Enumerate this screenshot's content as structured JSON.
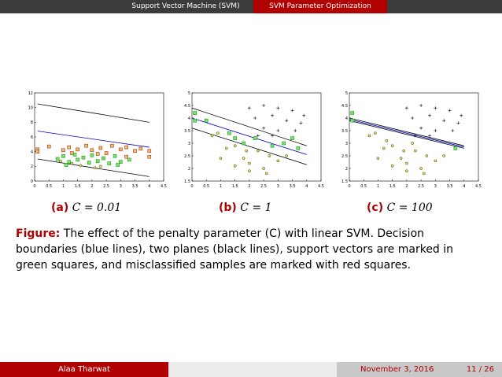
{
  "header": {
    "active_section": "Support Vector Machine (SVM)",
    "next_section": "SVM Parameter Optimization"
  },
  "subfigures": [
    {
      "label": "(a)",
      "math": "C = 0.01"
    },
    {
      "label": "(b)",
      "math": "C = 1"
    },
    {
      "label": "(c)",
      "math": "C = 100"
    }
  ],
  "caption": {
    "label": "Figure:",
    "text": " The effect of the penalty parameter (C) with linear SVM. Decision boundaries (blue lines), two planes (black lines), support vectors are marked in green squares, and misclassified samples are marked with red squares."
  },
  "footer": {
    "author": "Alaa Tharwat",
    "date": "November 3, 2016",
    "page": "11 / 26"
  },
  "chart_data": [
    {
      "type": "scatter",
      "xlim": [
        0,
        4.5
      ],
      "ylim": [
        0,
        12
      ],
      "xticks": [
        "0",
        "0.5",
        "1",
        "1.5",
        "2",
        "2.5",
        "3",
        "3.5",
        "4",
        "4.5"
      ],
      "yticks": [
        "0",
        "2",
        "4",
        "6",
        "8",
        "10",
        "12"
      ],
      "lines": [
        {
          "kind": "plane",
          "x": [
            0.1,
            4.0
          ],
          "y": [
            10.5,
            8.0
          ]
        },
        {
          "kind": "boundary",
          "x": [
            0.1,
            4.0
          ],
          "y": [
            6.8,
            4.6
          ]
        },
        {
          "kind": "plane",
          "x": [
            0.1,
            4.0
          ],
          "y": [
            3.0,
            0.6
          ]
        }
      ],
      "points": [
        {
          "x": 0.1,
          "y": 4.3,
          "m": "sq",
          "c": "red"
        },
        {
          "x": 0.1,
          "y": 4.0,
          "m": "sq",
          "c": "red"
        },
        {
          "x": 0.5,
          "y": 4.7,
          "m": "sq",
          "c": "red"
        },
        {
          "x": 1.0,
          "y": 4.2,
          "m": "sq",
          "c": "red"
        },
        {
          "x": 1.2,
          "y": 4.6,
          "m": "sq",
          "c": "red"
        },
        {
          "x": 1.5,
          "y": 4.3,
          "m": "sq",
          "c": "red"
        },
        {
          "x": 1.8,
          "y": 4.8,
          "m": "sq",
          "c": "red"
        },
        {
          "x": 2.0,
          "y": 4.2,
          "m": "sq",
          "c": "red"
        },
        {
          "x": 2.3,
          "y": 4.5,
          "m": "sq",
          "c": "red"
        },
        {
          "x": 2.5,
          "y": 3.8,
          "m": "sq",
          "c": "red"
        },
        {
          "x": 2.7,
          "y": 4.8,
          "m": "sq",
          "c": "red"
        },
        {
          "x": 3.0,
          "y": 4.3,
          "m": "sq",
          "c": "red"
        },
        {
          "x": 3.2,
          "y": 4.6,
          "m": "sq",
          "c": "red"
        },
        {
          "x": 3.5,
          "y": 4.1,
          "m": "sq",
          "c": "red"
        },
        {
          "x": 3.7,
          "y": 4.4,
          "m": "sq",
          "c": "red"
        },
        {
          "x": 4.0,
          "y": 4.1,
          "m": "sq",
          "c": "red"
        },
        {
          "x": 4.0,
          "y": 3.3,
          "m": "sq",
          "c": "red"
        },
        {
          "x": 3.2,
          "y": 3.3,
          "m": "sq",
          "c": "red"
        },
        {
          "x": 2.2,
          "y": 3.7,
          "m": "sq",
          "c": "red"
        },
        {
          "x": 1.3,
          "y": 3.8,
          "m": "sq",
          "c": "red"
        },
        {
          "x": 0.8,
          "y": 3.0,
          "m": "sq",
          "c": "green"
        },
        {
          "x": 1.0,
          "y": 3.4,
          "m": "sq",
          "c": "green"
        },
        {
          "x": 1.2,
          "y": 2.6,
          "m": "sq",
          "c": "green"
        },
        {
          "x": 1.4,
          "y": 3.6,
          "m": "sq",
          "c": "green"
        },
        {
          "x": 1.5,
          "y": 2.9,
          "m": "sq",
          "c": "green"
        },
        {
          "x": 1.7,
          "y": 3.2,
          "m": "sq",
          "c": "green"
        },
        {
          "x": 1.9,
          "y": 2.5,
          "m": "sq",
          "c": "green"
        },
        {
          "x": 2.0,
          "y": 3.5,
          "m": "sq",
          "c": "green"
        },
        {
          "x": 2.2,
          "y": 2.7,
          "m": "sq",
          "c": "green"
        },
        {
          "x": 2.4,
          "y": 3.1,
          "m": "sq",
          "c": "green"
        },
        {
          "x": 2.6,
          "y": 2.4,
          "m": "sq",
          "c": "green"
        },
        {
          "x": 2.8,
          "y": 3.4,
          "m": "sq",
          "c": "green"
        },
        {
          "x": 3.0,
          "y": 2.6,
          "m": "sq",
          "c": "green"
        },
        {
          "x": 3.3,
          "y": 2.9,
          "m": "sq",
          "c": "green"
        },
        {
          "x": 1.1,
          "y": 2.2,
          "m": "sq",
          "c": "green"
        },
        {
          "x": 2.9,
          "y": 2.2,
          "m": "sq",
          "c": "green"
        },
        {
          "x": 0.9,
          "y": 2.7,
          "m": "o",
          "c": "yellow"
        },
        {
          "x": 1.6,
          "y": 2.1,
          "m": "o",
          "c": "yellow"
        },
        {
          "x": 2.3,
          "y": 2.0,
          "m": "o",
          "c": "yellow"
        },
        {
          "x": 2.1,
          "y": 1.8,
          "m": "o",
          "c": "yellow"
        },
        {
          "x": 1.3,
          "y": 2.4,
          "m": "o",
          "c": "yellow"
        }
      ]
    },
    {
      "type": "scatter",
      "xlim": [
        0,
        4.5
      ],
      "ylim": [
        1.5,
        5
      ],
      "xticks": [
        "0",
        "0.5",
        "1",
        "1.5",
        "2",
        "2.5",
        "3",
        "3.5",
        "4",
        "4.5"
      ],
      "yticks": [
        "1.5",
        "2",
        "2.5",
        "3",
        "3.5",
        "4",
        "4.5",
        "5"
      ],
      "lines": [
        {
          "kind": "plane",
          "x": [
            0.0,
            4.0
          ],
          "y": [
            4.4,
            2.9
          ]
        },
        {
          "kind": "boundary",
          "x": [
            0.0,
            4.0
          ],
          "y": [
            4.0,
            2.55
          ]
        },
        {
          "kind": "plane",
          "x": [
            0.0,
            4.0
          ],
          "y": [
            3.6,
            2.15
          ]
        }
      ],
      "points": [
        {
          "x": 2.0,
          "y": 4.4,
          "m": "+",
          "c": "black"
        },
        {
          "x": 2.5,
          "y": 4.5,
          "m": "+",
          "c": "black"
        },
        {
          "x": 3.0,
          "y": 4.4,
          "m": "+",
          "c": "black"
        },
        {
          "x": 3.5,
          "y": 4.3,
          "m": "+",
          "c": "black"
        },
        {
          "x": 2.2,
          "y": 4.0,
          "m": "+",
          "c": "black"
        },
        {
          "x": 2.8,
          "y": 4.1,
          "m": "+",
          "c": "black"
        },
        {
          "x": 3.3,
          "y": 3.9,
          "m": "+",
          "c": "black"
        },
        {
          "x": 3.8,
          "y": 3.8,
          "m": "+",
          "c": "black"
        },
        {
          "x": 2.5,
          "y": 3.6,
          "m": "+",
          "c": "black"
        },
        {
          "x": 3.0,
          "y": 3.5,
          "m": "+",
          "c": "black"
        },
        {
          "x": 3.6,
          "y": 3.5,
          "m": "+",
          "c": "black"
        },
        {
          "x": 2.8,
          "y": 3.3,
          "m": "+",
          "c": "black"
        },
        {
          "x": 3.9,
          "y": 4.1,
          "m": "+",
          "c": "black"
        },
        {
          "x": 2.3,
          "y": 3.3,
          "m": "+",
          "c": "black"
        },
        {
          "x": 0.1,
          "y": 4.2,
          "m": "sq",
          "c": "green"
        },
        {
          "x": 0.1,
          "y": 3.9,
          "m": "sq",
          "c": "green"
        },
        {
          "x": 0.5,
          "y": 3.9,
          "m": "sq",
          "c": "green"
        },
        {
          "x": 1.3,
          "y": 3.4,
          "m": "sq",
          "c": "green"
        },
        {
          "x": 2.2,
          "y": 3.2,
          "m": "sq",
          "c": "green"
        },
        {
          "x": 2.8,
          "y": 2.9,
          "m": "sq",
          "c": "green"
        },
        {
          "x": 3.2,
          "y": 3.0,
          "m": "sq",
          "c": "green"
        },
        {
          "x": 3.5,
          "y": 3.2,
          "m": "sq",
          "c": "green"
        },
        {
          "x": 3.7,
          "y": 2.8,
          "m": "sq",
          "c": "green"
        },
        {
          "x": 1.8,
          "y": 3.0,
          "m": "sq",
          "c": "green"
        },
        {
          "x": 1.5,
          "y": 3.2,
          "m": "sq",
          "c": "green"
        },
        {
          "x": 0.7,
          "y": 3.3,
          "m": "o",
          "c": "yellow"
        },
        {
          "x": 0.9,
          "y": 3.4,
          "m": "o",
          "c": "yellow"
        },
        {
          "x": 1.2,
          "y": 2.8,
          "m": "o",
          "c": "yellow"
        },
        {
          "x": 1.5,
          "y": 2.9,
          "m": "o",
          "c": "yellow"
        },
        {
          "x": 1.8,
          "y": 2.4,
          "m": "o",
          "c": "yellow"
        },
        {
          "x": 2.0,
          "y": 2.2,
          "m": "o",
          "c": "yellow"
        },
        {
          "x": 2.3,
          "y": 2.7,
          "m": "o",
          "c": "yellow"
        },
        {
          "x": 2.5,
          "y": 2.0,
          "m": "o",
          "c": "yellow"
        },
        {
          "x": 1.5,
          "y": 2.1,
          "m": "o",
          "c": "yellow"
        },
        {
          "x": 1.0,
          "y": 2.4,
          "m": "o",
          "c": "yellow"
        },
        {
          "x": 1.9,
          "y": 2.7,
          "m": "o",
          "c": "yellow"
        },
        {
          "x": 3.0,
          "y": 2.3,
          "m": "o",
          "c": "yellow"
        },
        {
          "x": 2.7,
          "y": 2.5,
          "m": "o",
          "c": "yellow"
        },
        {
          "x": 2.0,
          "y": 1.9,
          "m": "o",
          "c": "yellow"
        },
        {
          "x": 3.3,
          "y": 2.5,
          "m": "o",
          "c": "yellow"
        },
        {
          "x": 2.6,
          "y": 1.8,
          "m": "o",
          "c": "yellow"
        }
      ]
    },
    {
      "type": "scatter",
      "xlim": [
        0,
        4.5
      ],
      "ylim": [
        1.5,
        5
      ],
      "xticks": [
        "0",
        "0.5",
        "1",
        "1.5",
        "2",
        "2.5",
        "3",
        "3.5",
        "4",
        "4.5"
      ],
      "yticks": [
        "1.5",
        "2",
        "2.5",
        "3",
        "3.5",
        "4",
        "4.5",
        "5"
      ],
      "lines": [
        {
          "kind": "plane",
          "x": [
            0.0,
            4.0
          ],
          "y": [
            4.0,
            2.9
          ]
        },
        {
          "kind": "boundary",
          "x": [
            0.0,
            4.0
          ],
          "y": [
            3.95,
            2.85
          ]
        },
        {
          "kind": "plane",
          "x": [
            0.0,
            4.0
          ],
          "y": [
            3.9,
            2.8
          ]
        }
      ],
      "points": [
        {
          "x": 2.0,
          "y": 4.4,
          "m": "+",
          "c": "black"
        },
        {
          "x": 2.5,
          "y": 4.5,
          "m": "+",
          "c": "black"
        },
        {
          "x": 3.0,
          "y": 4.4,
          "m": "+",
          "c": "black"
        },
        {
          "x": 3.5,
          "y": 4.3,
          "m": "+",
          "c": "black"
        },
        {
          "x": 2.2,
          "y": 4.0,
          "m": "+",
          "c": "black"
        },
        {
          "x": 2.8,
          "y": 4.1,
          "m": "+",
          "c": "black"
        },
        {
          "x": 3.3,
          "y": 3.9,
          "m": "+",
          "c": "black"
        },
        {
          "x": 3.8,
          "y": 3.8,
          "m": "+",
          "c": "black"
        },
        {
          "x": 2.5,
          "y": 3.6,
          "m": "+",
          "c": "black"
        },
        {
          "x": 3.0,
          "y": 3.5,
          "m": "+",
          "c": "black"
        },
        {
          "x": 3.6,
          "y": 3.5,
          "m": "+",
          "c": "black"
        },
        {
          "x": 2.8,
          "y": 3.3,
          "m": "+",
          "c": "black"
        },
        {
          "x": 3.9,
          "y": 4.1,
          "m": "+",
          "c": "black"
        },
        {
          "x": 2.3,
          "y": 3.3,
          "m": "+",
          "c": "black"
        },
        {
          "x": 0.1,
          "y": 4.2,
          "m": "sq",
          "c": "green"
        },
        {
          "x": 0.1,
          "y": 3.9,
          "m": "sq",
          "c": "green"
        },
        {
          "x": 3.7,
          "y": 2.8,
          "m": "sq",
          "c": "green"
        },
        {
          "x": 0.7,
          "y": 3.3,
          "m": "o",
          "c": "yellow"
        },
        {
          "x": 0.9,
          "y": 3.4,
          "m": "o",
          "c": "yellow"
        },
        {
          "x": 1.2,
          "y": 2.8,
          "m": "o",
          "c": "yellow"
        },
        {
          "x": 1.5,
          "y": 2.9,
          "m": "o",
          "c": "yellow"
        },
        {
          "x": 1.8,
          "y": 2.4,
          "m": "o",
          "c": "yellow"
        },
        {
          "x": 2.0,
          "y": 2.2,
          "m": "o",
          "c": "yellow"
        },
        {
          "x": 2.3,
          "y": 2.7,
          "m": "o",
          "c": "yellow"
        },
        {
          "x": 2.5,
          "y": 2.0,
          "m": "o",
          "c": "yellow"
        },
        {
          "x": 1.5,
          "y": 2.1,
          "m": "o",
          "c": "yellow"
        },
        {
          "x": 1.0,
          "y": 2.4,
          "m": "o",
          "c": "yellow"
        },
        {
          "x": 1.9,
          "y": 2.7,
          "m": "o",
          "c": "yellow"
        },
        {
          "x": 3.0,
          "y": 2.3,
          "m": "o",
          "c": "yellow"
        },
        {
          "x": 2.7,
          "y": 2.5,
          "m": "o",
          "c": "yellow"
        },
        {
          "x": 2.0,
          "y": 1.9,
          "m": "o",
          "c": "yellow"
        },
        {
          "x": 3.3,
          "y": 2.5,
          "m": "o",
          "c": "yellow"
        },
        {
          "x": 2.6,
          "y": 1.8,
          "m": "o",
          "c": "yellow"
        },
        {
          "x": 1.3,
          "y": 3.1,
          "m": "o",
          "c": "yellow"
        },
        {
          "x": 2.2,
          "y": 3.0,
          "m": "o",
          "c": "yellow"
        }
      ]
    }
  ]
}
